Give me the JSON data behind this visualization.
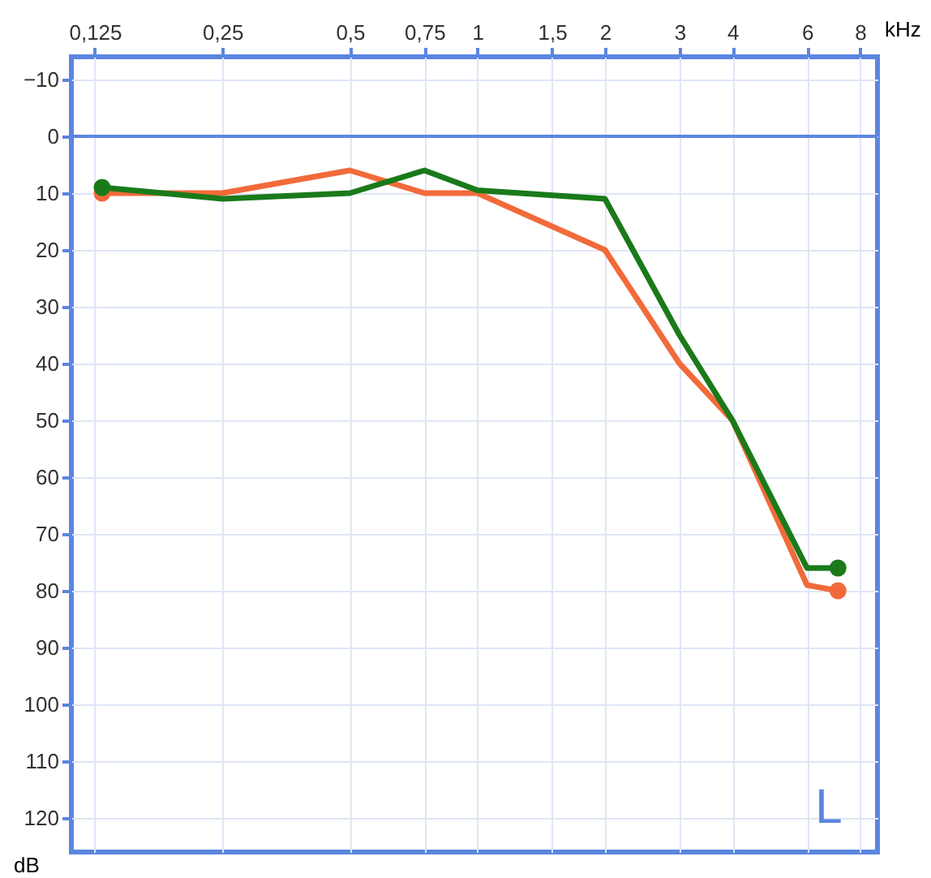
{
  "chart_data": {
    "type": "line",
    "xlabel": "kHz",
    "ylabel": "dB",
    "annotations": [
      "L"
    ],
    "xlim": [
      0.11,
      8.8
    ],
    "ylim": [
      126,
      -14
    ],
    "log": "x",
    "grid": true,
    "line_style": "solid",
    "marker": "none",
    "xticks": [
      {
        "value": 0.125,
        "label": "0,125"
      },
      {
        "value": 0.25,
        "label": "0,25"
      },
      {
        "value": 0.5,
        "label": "0,5"
      },
      {
        "value": 0.75,
        "label": "0,75"
      },
      1,
      {
        "value": 1.5,
        "label": "1,5"
      },
      2,
      3,
      4,
      6,
      8
    ],
    "yticks": [
      -10,
      0,
      10,
      20,
      30,
      40,
      50,
      60,
      70,
      80,
      90,
      100,
      110,
      120
    ],
    "ref_lines": [
      {
        "axis": "y",
        "value": 0,
        "label": null,
        "color": "#5b86e0"
      }
    ],
    "series": [
      {
        "color": "#f26a3a",
        "x": [
          0.13,
          0.25,
          0.5,
          0.75,
          1,
          2,
          3,
          4,
          6,
          7.1
        ],
        "values": [
          10,
          10,
          6,
          10,
          10,
          20,
          40,
          50,
          79,
          80
        ]
      },
      {
        "color": "#1a7a1a",
        "x": [
          0.13,
          0.25,
          0.5,
          0.75,
          1,
          2,
          3,
          4,
          6,
          7.1
        ],
        "values": [
          9,
          11,
          10,
          6,
          9.5,
          11,
          35,
          50,
          76,
          76
        ]
      },
      {
        "type": "scatter",
        "marker": "circle",
        "color": "#f26a3a",
        "x": [
          0.13,
          7.1
        ],
        "values": [
          10,
          80
        ]
      },
      {
        "type": "scatter",
        "marker": "circle",
        "color": "#1a7a1a",
        "x": [
          0.13,
          7.1
        ],
        "values": [
          9,
          76
        ]
      }
    ]
  }
}
